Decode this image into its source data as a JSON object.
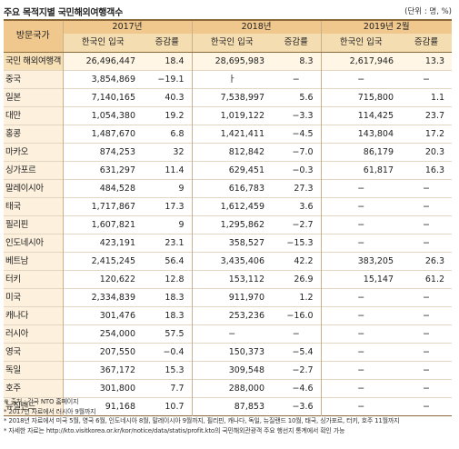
{
  "title": "주요 목적지별 국민해외여행객수",
  "unit": "(단위 : 명, %)",
  "header": {
    "row_label": "방문국가",
    "year_2017": "2017년",
    "year_2018": "2018년",
    "year_2019": "2019년 2월",
    "col_visitors": "한국인 입국",
    "col_rate": "증감률"
  },
  "rows": [
    [
      "국민 해외여행객",
      "26,496,447",
      "18.4",
      "28,695,983",
      "8.3",
      "2,617,946",
      "13.3"
    ],
    [
      "중국",
      "3,854,869",
      "−19.1",
      "ㅏ",
      "−",
      "−",
      "−"
    ],
    [
      "일본",
      "7,140,165",
      "40.3",
      "7,538,997",
      "5.6",
      "715,800",
      "1.1"
    ],
    [
      "대만",
      "1,054,380",
      "19.2",
      "1,019,122",
      "−3.3",
      "114,425",
      "23.7"
    ],
    [
      "홍콩",
      "1,487,670",
      "6.8",
      "1,421,411",
      "−4.5",
      "143,804",
      "17.2"
    ],
    [
      "마카오",
      "874,253",
      "32",
      "812,842",
      "−7.0",
      "86,179",
      "20.3"
    ],
    [
      "싱가포르",
      "631,297",
      "11.4",
      "629,451",
      "−0.3",
      "61,817",
      "16.3"
    ],
    [
      "말레이시아",
      "484,528",
      "9",
      "616,783",
      "27.3",
      "−",
      "−"
    ],
    [
      "태국",
      "1,717,867",
      "17.3",
      "1,612,459",
      "3.6",
      "−",
      "−"
    ],
    [
      "필리핀",
      "1,607,821",
      "9",
      "1,295,862",
      "−2.7",
      "−",
      "−"
    ],
    [
      "인도네시아",
      "423,191",
      "23.1",
      "358,527",
      "−15.3",
      "−",
      "−"
    ],
    [
      "베트남",
      "2,415,245",
      "56.4",
      "3,435,406",
      "42.2",
      "383,205",
      "26.3"
    ],
    [
      "터키",
      "120,622",
      "12.8",
      "153,112",
      "26.9",
      "15,147",
      "61.2"
    ],
    [
      "미국",
      "2,334,839",
      "18.3",
      "911,970",
      "1.2",
      "−",
      "−"
    ],
    [
      "캐나다",
      "301,476",
      "18.3",
      "253,236",
      "−16.0",
      "−",
      "−"
    ],
    [
      "러시아",
      "254,000",
      "57.5",
      "−",
      "−",
      "−",
      "−"
    ],
    [
      "영국",
      "207,550",
      "−0.4",
      "150,373",
      "−5.4",
      "−",
      "−"
    ],
    [
      "독일",
      "367,172",
      "15.3",
      "309,548",
      "−2.7",
      "−",
      "−"
    ],
    [
      "호주",
      "301,800",
      "7.7",
      "288,000",
      "−4.6",
      "−",
      "−"
    ],
    [
      "뉴질랜드",
      "91,168",
      "10.7",
      "87,853",
      "−3.6",
      "−",
      "−"
    ]
  ],
  "notes": [
    "※ 출처 : 각국 NTO 홈페이지",
    "* 2017년 자료에서 러시아 9월까지",
    "* 2018년 자료에서 미국 5월, 영국 6월, 인도네시아 8월, 말레이시아 9월까지, 필리핀, 캐나다, 독일, 뉴질랜드 10월, 태국, 싱가포르, 터키, 호주 11월까지",
    "* 자세한 자료는 http://kto.visitkorea.or.kr/kor/notice/data/statis/profit.kto의 국민해외관광객 주요 행선지 통계에서 확인 가능"
  ]
}
